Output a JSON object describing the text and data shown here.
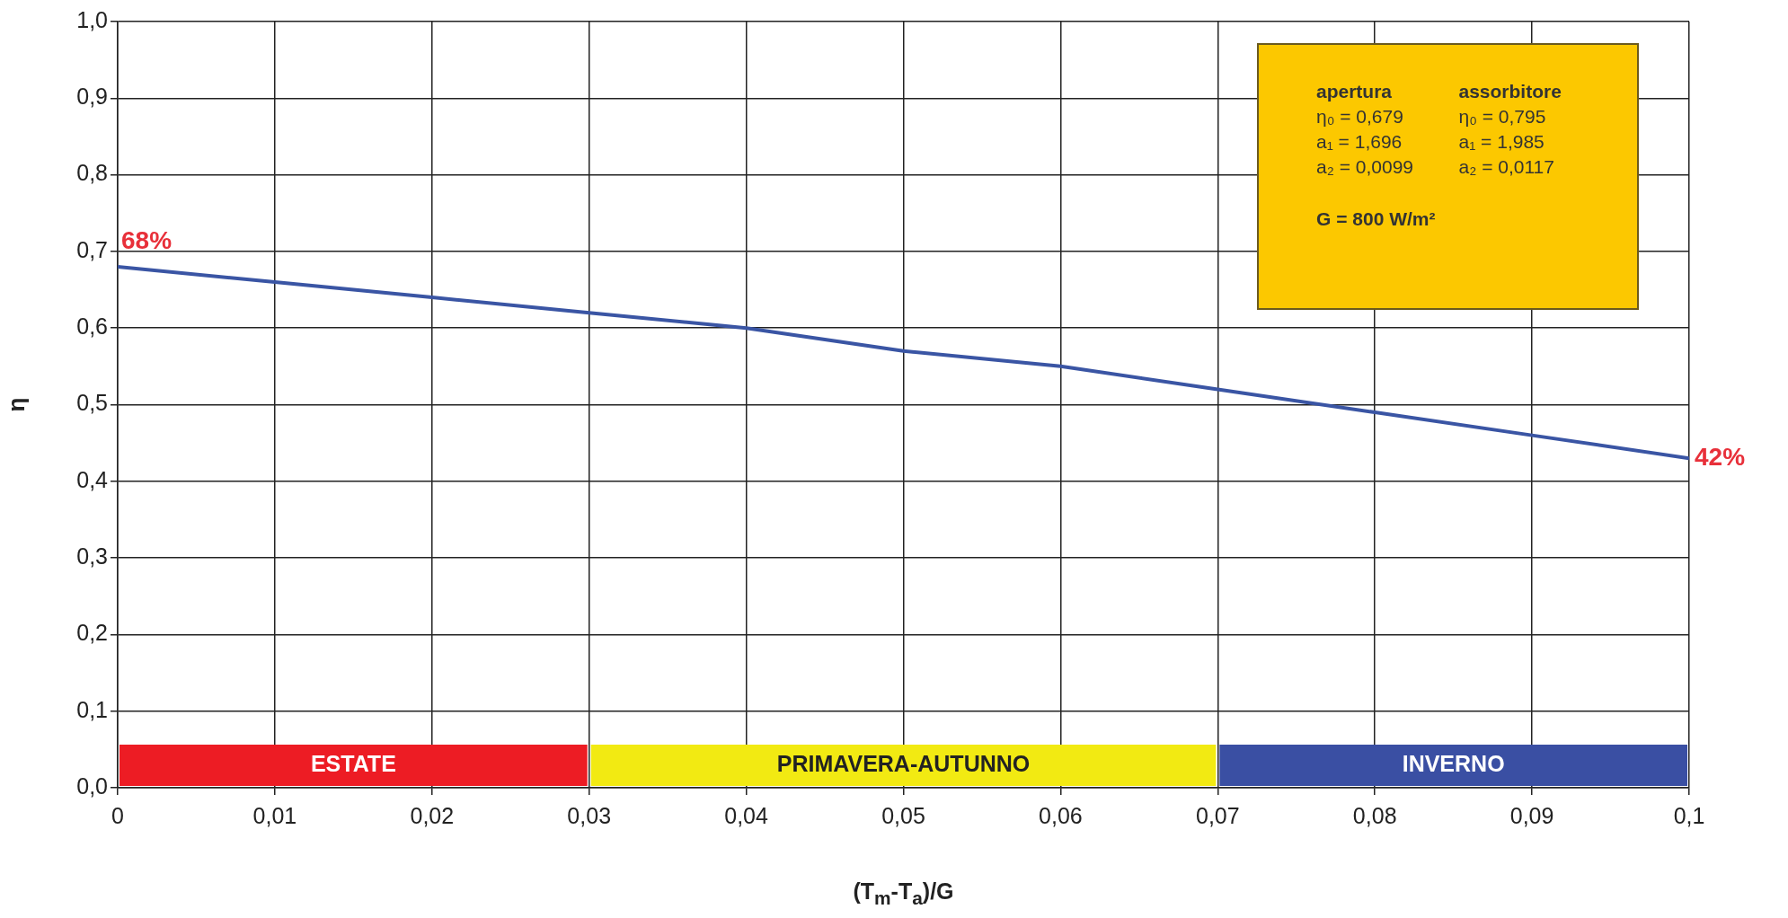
{
  "chart_data": {
    "type": "line",
    "xlabel": "(T$_{m}$-T$_{a}$)/G",
    "ylabel": "η",
    "x": [
      0,
      0.01,
      0.02,
      0.03,
      0.04,
      0.05,
      0.06,
      0.07,
      0.08,
      0.09,
      0.1
    ],
    "series": [
      {
        "color": "#3a55a4",
        "values": [
          0.68,
          0.66,
          0.64,
          0.62,
          0.6,
          0.57,
          0.55,
          0.52,
          0.49,
          0.46,
          0.43
        ]
      }
    ],
    "xlim": [
      0,
      0.1
    ],
    "xticks": [
      0,
      {
        "value": 0.01,
        "label": "0,01"
      },
      {
        "value": 0.02,
        "label": "0,02"
      },
      {
        "value": 0.03,
        "label": "0,03"
      },
      {
        "value": 0.04,
        "label": "0,04"
      },
      {
        "value": 0.05,
        "label": "0,05"
      },
      {
        "value": 0.06,
        "label": "0,06"
      },
      {
        "value": 0.07,
        "label": "0,07"
      },
      {
        "value": 0.08,
        "label": "0,08"
      },
      {
        "value": 0.09,
        "label": "0,09"
      },
      {
        "value": 0.1,
        "label": "0,1"
      }
    ],
    "ylim": [
      0,
      1
    ],
    "yticks": [
      {
        "value": 0,
        "label": "0,0"
      },
      {
        "value": 0.1,
        "label": "0,1"
      },
      {
        "value": 0.2,
        "label": "0,2"
      },
      {
        "value": 0.3,
        "label": "0,3"
      },
      {
        "value": 0.4,
        "label": "0,4"
      },
      {
        "value": 0.5,
        "label": "0,5"
      },
      {
        "value": 0.6,
        "label": "0,6"
      },
      {
        "value": 0.7,
        "label": "0,7"
      },
      {
        "value": 0.8,
        "label": "0,8"
      },
      {
        "value": 0.9,
        "label": "0,9"
      },
      {
        "value": 1,
        "label": "1,0"
      }
    ],
    "grid": true,
    "marker": "none",
    "line_style": "solid",
    "legend": false,
    "bands": [
      {
        "axis": "x",
        "from": 0,
        "to": 0.03,
        "label": "ESTATE",
        "color": "#ed1c24"
      },
      {
        "axis": "x",
        "from": 0.03,
        "to": 0.07,
        "label": "PRIMAVERA-AUTUNNO",
        "color": "#f2ea12"
      },
      {
        "axis": "x",
        "from": 0.07,
        "to": 0.1,
        "label": "INVERNO",
        "color": "#3a4fa3"
      }
    ],
    "annotations": [
      {
        "text": "68%",
        "x": 0,
        "y": 0.68
      },
      {
        "text": "42%",
        "x": 0.1,
        "y": 0.43
      },
      "apertura",
      "assorbitore",
      "η₀ = 0,679",
      "η₀ = 0,795",
      "a₁ = 1,696",
      "a₁ = 1,985",
      "a₂ = 0,0099",
      "a₂ = 0,0117",
      "G = 800 W/m²"
    ]
  }
}
